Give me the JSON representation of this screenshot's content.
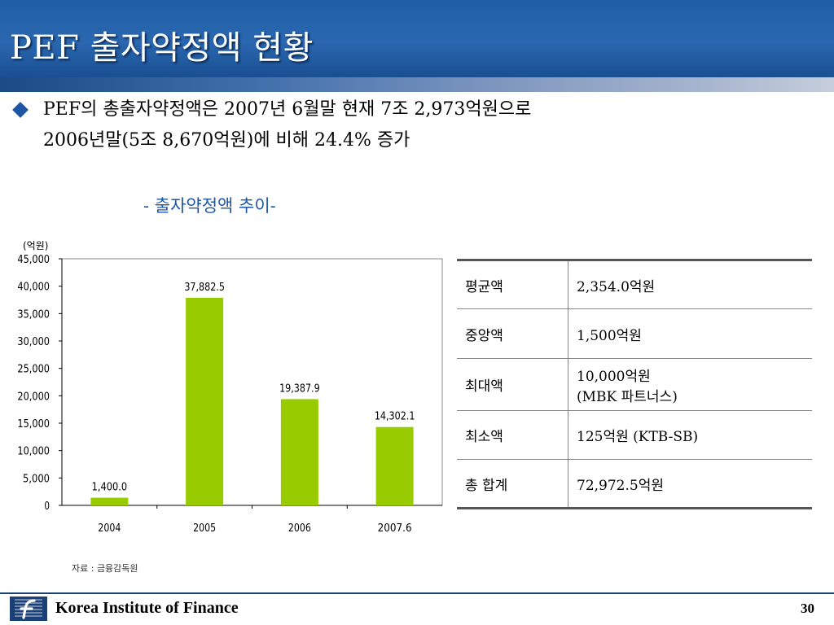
{
  "title": "PEF 출자약정액 현황",
  "summary": {
    "line1": "PEF의 총출자약정액은 2007년 6월말 현재 7조 2,973억원으로",
    "line2": "2006년말(5조 8,670억원)에 비해  24.4% 증가"
  },
  "chart_title": "-  출자약정액 추이-",
  "chart_data": {
    "type": "bar",
    "title": "",
    "unit_label": "(억원)",
    "categories": [
      "2004",
      "2005",
      "2006",
      "2007.6"
    ],
    "values": [
      1400.0,
      37882.5,
      19387.9,
      14302.1
    ],
    "value_labels": [
      "1,400.0",
      "37,882.5",
      "19,387.9",
      "14,302.1"
    ],
    "ylim": [
      0,
      45000
    ],
    "yticks": [
      "0",
      "5,000",
      "10,000",
      "15,000",
      "20,000",
      "25,000",
      "30,000",
      "35,000",
      "40,000",
      "45,000"
    ],
    "ytick_values": [
      0,
      5000,
      10000,
      15000,
      20000,
      25000,
      30000,
      35000,
      40000,
      45000
    ],
    "bar_color": "#99cc00",
    "grid": false
  },
  "source": "자료 : 금융감독원",
  "table": {
    "rows": [
      {
        "key": "평균액",
        "value": "2,354.0억원"
      },
      {
        "key": "중앙액",
        "value": "1,500억원"
      },
      {
        "key": "최대액",
        "value": "10,000억원",
        "value2": "(MBK 파트너스)"
      },
      {
        "key": "최소액",
        "value": "125억원 (KTB-SB)"
      },
      {
        "key": "총 합계",
        "value": "72,972.5억원"
      }
    ]
  },
  "footer": {
    "org": "Korea Institute of Finance",
    "page": "30"
  },
  "colors": {
    "title_bar": "#2a67b0",
    "bullet": "#1e56a6",
    "bar": "#99cc00"
  }
}
